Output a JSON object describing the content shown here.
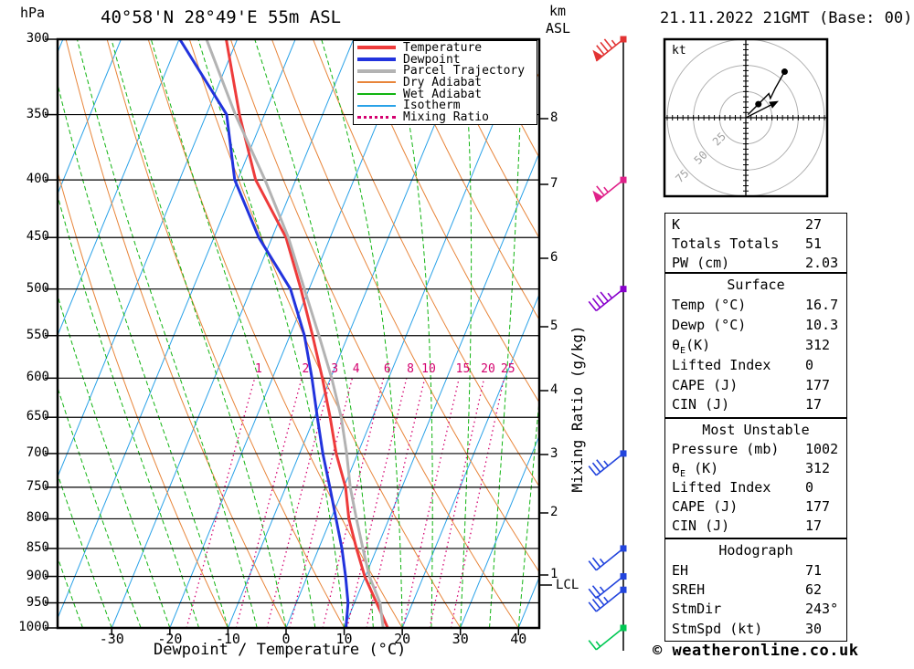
{
  "header": {
    "station_title": "40°58'N 28°49'E 55m ASL",
    "datetime_title": "21.11.2022 21GMT (Base: 00)",
    "pressure_unit": "hPa",
    "alt_unit_line1": "km",
    "alt_unit_line2": "ASL"
  },
  "legend": {
    "items": [
      {
        "label": "Temperature",
        "color": "#ee3b3b",
        "style": "thick"
      },
      {
        "label": "Dewpoint",
        "color": "#2233dd",
        "style": "thick"
      },
      {
        "label": "Parcel Trajectory",
        "color": "#b3b3b3",
        "style": "thick"
      },
      {
        "label": "Dry Adiabat",
        "color": "#e8853a",
        "style": "thin"
      },
      {
        "label": "Wet Adiabat",
        "color": "#11b411",
        "style": "thin"
      },
      {
        "label": "Isotherm",
        "color": "#2aa2e8",
        "style": "thin"
      },
      {
        "label": "Mixing Ratio",
        "color": "#d4006e",
        "style": "dotted"
      }
    ]
  },
  "axes": {
    "pressure_ticks": [
      300,
      350,
      400,
      450,
      500,
      550,
      600,
      650,
      700,
      750,
      800,
      850,
      900,
      950,
      1000
    ],
    "temp_ticks": [
      -30,
      -20,
      -10,
      0,
      10,
      20,
      30,
      40
    ],
    "temp_axis_label": "Dewpoint / Temperature (°C)",
    "mixing_axis_label": "Mixing Ratio (g/kg)",
    "km_ticks": [
      {
        "km": 1,
        "y": 630
      },
      {
        "km": 2,
        "y": 562
      },
      {
        "km": 3,
        "y": 498
      },
      {
        "km": 4,
        "y": 428
      },
      {
        "km": 5,
        "y": 358
      },
      {
        "km": 6,
        "y": 283
      },
      {
        "km": 7,
        "y": 202
      },
      {
        "km": 8,
        "y": 130
      }
    ],
    "lcl": {
      "label": "LCL",
      "y": 641
    }
  },
  "chart_data": {
    "type": "skew-t-log-p",
    "pressure_range_hpa": [
      300,
      1000
    ],
    "temp_range_c": [
      -30,
      40
    ],
    "isotherm_step_c": 10,
    "dry_adiabat_step_c": 10,
    "wet_adiabat_step_c": 5,
    "mixing_ratio_lines_gkg": [
      1,
      2,
      3,
      4,
      6,
      8,
      10,
      15,
      20,
      25
    ],
    "series": [
      {
        "name": "Temperature",
        "color": "#ee3b3b",
        "width": 3,
        "points_p_t": [
          [
            300,
            -51.9
          ],
          [
            350,
            -44.3
          ],
          [
            400,
            -36.9
          ],
          [
            450,
            -27.6
          ],
          [
            500,
            -21.4
          ],
          [
            550,
            -16.1
          ],
          [
            600,
            -11.4
          ],
          [
            650,
            -7.3
          ],
          [
            700,
            -3.7
          ],
          [
            750,
            0.3
          ],
          [
            800,
            3.1
          ],
          [
            850,
            6.5
          ],
          [
            900,
            9.9
          ],
          [
            950,
            13.8
          ],
          [
            1000,
            17.5
          ]
        ]
      },
      {
        "name": "Dewpoint",
        "color": "#2233dd",
        "width": 3,
        "points_p_t": [
          [
            300,
            -59.9
          ],
          [
            350,
            -46.5
          ],
          [
            400,
            -40.5
          ],
          [
            450,
            -32.3
          ],
          [
            500,
            -23.2
          ],
          [
            550,
            -17.5
          ],
          [
            600,
            -13.2
          ],
          [
            650,
            -9.5
          ],
          [
            700,
            -6.0
          ],
          [
            750,
            -2.4
          ],
          [
            800,
            0.9
          ],
          [
            850,
            4.0
          ],
          [
            900,
            6.6
          ],
          [
            950,
            8.9
          ],
          [
            1000,
            10.3
          ]
        ]
      },
      {
        "name": "Parcel Trajectory",
        "color": "#b3b3b3",
        "width": 3,
        "points_p_t": [
          [
            300,
            -55.3
          ],
          [
            350,
            -45.0
          ],
          [
            400,
            -35.3
          ],
          [
            450,
            -27.2
          ],
          [
            500,
            -20.8
          ],
          [
            550,
            -15.0
          ],
          [
            600,
            -9.8
          ],
          [
            650,
            -5.4
          ],
          [
            700,
            -1.9
          ],
          [
            750,
            1.1
          ],
          [
            800,
            4.4
          ],
          [
            850,
            7.6
          ],
          [
            900,
            10.7
          ],
          [
            950,
            14.4
          ],
          [
            1000,
            16.7
          ]
        ]
      }
    ],
    "wind_barbs": [
      {
        "pressure": 300,
        "color": "#e23333",
        "pennants": 1,
        "full": 3,
        "half": 1
      },
      {
        "pressure": 400,
        "color": "#e0218a",
        "pennants": 1,
        "full": 1,
        "half": 1
      },
      {
        "pressure": 500,
        "color": "#8800cc",
        "pennants": 0,
        "full": 4,
        "half": 1
      },
      {
        "pressure": 700,
        "color": "#2244dd",
        "pennants": 0,
        "full": 3,
        "half": 1
      },
      {
        "pressure": 850,
        "color": "#2244dd",
        "pennants": 0,
        "full": 2,
        "half": 1
      },
      {
        "pressure": 900,
        "color": "#2244dd",
        "pennants": 0,
        "full": 2,
        "half": 1
      },
      {
        "pressure": 925,
        "color": "#2244dd",
        "pennants": 0,
        "full": 3,
        "half": 1
      },
      {
        "pressure": 1000,
        "color": "#00c853",
        "pennants": 0,
        "full": 1,
        "half": 1
      }
    ]
  },
  "hodograph": {
    "unit_label": "kt",
    "ring_radii_kt": [
      25,
      50,
      75
    ],
    "tick_step_kt": 5,
    "ring_label_color": "#a0a0a0",
    "trace_uv_kt": [
      {
        "u": 2,
        "v": 3,
        "dot": false
      },
      {
        "u": 12,
        "v": 13,
        "dot": true
      },
      {
        "u": 22,
        "v": 23,
        "dot": false
      },
      {
        "u": 23.5,
        "v": 18.5,
        "dot": false
      },
      {
        "u": 28,
        "v": 28,
        "dot": false
      },
      {
        "u": 37,
        "v": 44,
        "dot": true
      }
    ],
    "storm_dir_deg": 243,
    "storm_speed_kt": 30
  },
  "panels": {
    "indices": {
      "k_label": "K",
      "k_value": "27",
      "tt_label": "Totals Totals",
      "tt_value": "51",
      "pw_label": "PW (cm)",
      "pw_value": "2.03"
    },
    "surface": {
      "title": "Surface",
      "temp_label": "Temp (°C)",
      "temp_value": "16.7",
      "dewp_label": "Dewp (°C)",
      "dewp_value": "10.3",
      "theta_sym": "θ",
      "theta_sub": "E",
      "theta_rest": "(K)",
      "theta_value": "312",
      "li_label": "Lifted Index",
      "li_value": "0",
      "cape_label": "CAPE (J)",
      "cape_value": "177",
      "cin_label": "CIN (J)",
      "cin_value": "17"
    },
    "most_unstable": {
      "title": "Most Unstable",
      "pres_label": "Pressure (mb)",
      "pres_value": "1002",
      "theta_sym": "θ",
      "theta_sub": "E",
      "theta_rest": " (K)",
      "theta_value": "312",
      "li_label": "Lifted Index",
      "li_value": "0",
      "cape_label": "CAPE (J)",
      "cape_value": "177",
      "cin_label": "CIN (J)",
      "cin_value": "17"
    },
    "hodograph_panel": {
      "title": "Hodograph",
      "eh_label": "EH",
      "eh_value": "71",
      "sreh_label": "SREH",
      "sreh_value": "62",
      "stmdir_label": "StmDir",
      "stmdir_value": "243°",
      "stmspd_label": "StmSpd (kt)",
      "stmspd_value": "30"
    }
  },
  "footer": {
    "credit": "© weatheronline.co.uk"
  }
}
